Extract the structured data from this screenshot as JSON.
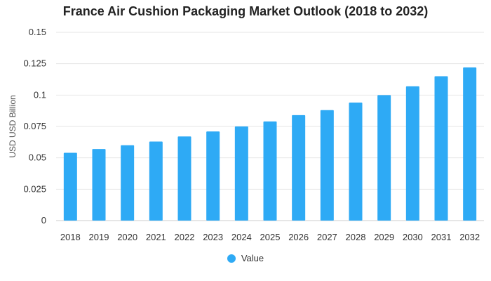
{
  "chart_data": {
    "type": "bar",
    "title": "France Air Cushion Packaging Market Outlook (2018 to 2032)",
    "xlabel": "",
    "ylabel": "USD USD Billion",
    "ylim": [
      0,
      0.15
    ],
    "yticks": [
      "0",
      "0.025",
      "0.05",
      "0.075",
      "0.1",
      "0.125",
      "0.15"
    ],
    "categories": [
      "2018",
      "2019",
      "2020",
      "2021",
      "2022",
      "2023",
      "2024",
      "2025",
      "2026",
      "2027",
      "2028",
      "2029",
      "2030",
      "2031",
      "2032"
    ],
    "series": [
      {
        "name": "Value",
        "color": "#2eaaf5",
        "values": [
          0.054,
          0.057,
          0.06,
          0.063,
          0.067,
          0.071,
          0.075,
          0.079,
          0.084,
          0.088,
          0.094,
          0.1,
          0.107,
          0.115,
          0.122
        ]
      }
    ],
    "grid": true,
    "legend_position": "bottom-center"
  }
}
